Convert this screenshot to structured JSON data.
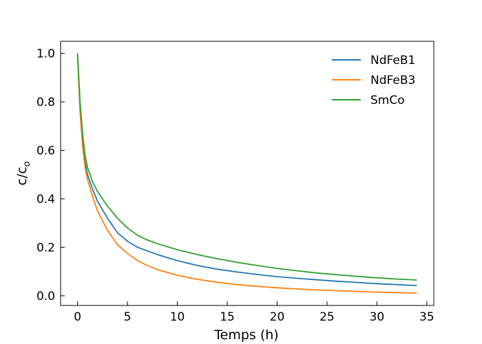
{
  "chart_data": {
    "type": "line",
    "xlabel": "Temps (h)",
    "ylabel": {
      "main": "c/c",
      "sub": "o"
    },
    "xlim": [
      -1.7,
      35.7
    ],
    "ylim": [
      -0.04,
      1.05
    ],
    "xticks": [
      0,
      5,
      10,
      15,
      20,
      25,
      30,
      35
    ],
    "yticks": [
      0.0,
      0.2,
      0.4,
      0.6,
      0.8,
      1.0
    ],
    "xtick_labels": [
      "0",
      "5",
      "10",
      "15",
      "20",
      "25",
      "30",
      "35"
    ],
    "ytick_labels": [
      "0.0",
      "0.2",
      "0.4",
      "0.6",
      "0.8",
      "1.0"
    ],
    "legend_position": "top-right",
    "grid": false,
    "series": [
      {
        "name": "NdFeB1",
        "color": "#1f77b4",
        "x": [
          0,
          0.25,
          0.5,
          0.75,
          1,
          1.5,
          2,
          3,
          4,
          5,
          6,
          7,
          8,
          10,
          12,
          14,
          16,
          18,
          20,
          22,
          24,
          26,
          28,
          30,
          32,
          34
        ],
        "y": [
          1.0,
          0.76,
          0.63,
          0.55,
          0.5,
          0.44,
          0.39,
          0.32,
          0.26,
          0.225,
          0.2,
          0.185,
          0.17,
          0.145,
          0.125,
          0.11,
          0.098,
          0.088,
          0.079,
          0.072,
          0.066,
          0.06,
          0.055,
          0.05,
          0.046,
          0.042
        ]
      },
      {
        "name": "NdFeB3",
        "color": "#ff7f0e",
        "x": [
          0,
          0.25,
          0.5,
          0.75,
          1,
          1.5,
          2,
          3,
          4,
          5,
          6,
          7,
          8,
          10,
          12,
          14,
          16,
          18,
          20,
          22,
          24,
          26,
          28,
          30,
          32,
          34
        ],
        "y": [
          1.0,
          0.76,
          0.62,
          0.53,
          0.48,
          0.41,
          0.35,
          0.27,
          0.21,
          0.175,
          0.145,
          0.125,
          0.108,
          0.085,
          0.068,
          0.056,
          0.046,
          0.039,
          0.033,
          0.028,
          0.024,
          0.021,
          0.018,
          0.015,
          0.013,
          0.011
        ]
      },
      {
        "name": "SmCo",
        "color": "#2ca02c",
        "x": [
          0,
          0.25,
          0.5,
          0.75,
          1,
          1.5,
          2,
          3,
          4,
          5,
          6,
          7,
          8,
          10,
          12,
          14,
          16,
          18,
          20,
          22,
          24,
          26,
          28,
          30,
          32,
          34
        ],
        "y": [
          1.0,
          0.8,
          0.67,
          0.58,
          0.53,
          0.47,
          0.43,
          0.37,
          0.32,
          0.28,
          0.25,
          0.23,
          0.215,
          0.19,
          0.17,
          0.153,
          0.138,
          0.125,
          0.113,
          0.103,
          0.094,
          0.087,
          0.08,
          0.074,
          0.069,
          0.065
        ]
      }
    ]
  }
}
